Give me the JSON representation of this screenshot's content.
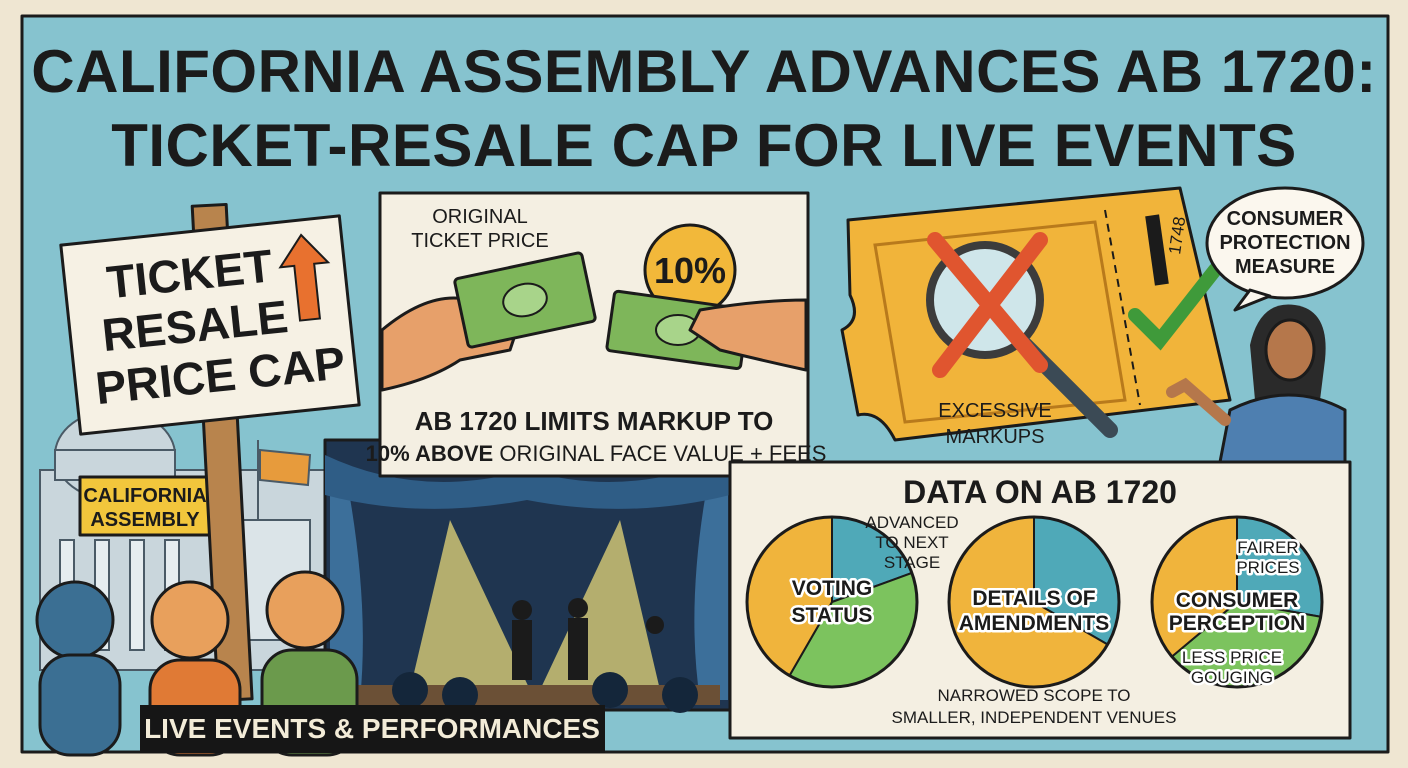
{
  "header": {
    "title_line1": "CALIFORNIA ASSEMBLY ADVANCES AB 1720:",
    "title_line2": "TICKET-RESALE CAP FOR LIVE EVENTS"
  },
  "sign": {
    "lines": [
      "TICKET",
      "RESALE",
      "PRICE CAP"
    ]
  },
  "building_label": {
    "lines": [
      "CALIFORNIA",
      "ASSEMBLY"
    ]
  },
  "banner": "LIVE EVENTS & PERFORMANCES",
  "price_panel": {
    "original_label": [
      "ORIGINAL",
      "TICKET PRICE"
    ],
    "badge": "10%",
    "caption_line1": "AB 1720 LIMITS MARKUP TO",
    "caption_line2_bold": "10% ABOVE",
    "caption_line2_rest": "ORIGINAL FACE VALUE + FEES"
  },
  "ticket_panel": {
    "barcode_text": "1748",
    "markup_label": [
      "EXCESSIVE",
      "MARKUPS"
    ],
    "speech": [
      "CONSUMER",
      "PROTECTION",
      "MEASURE"
    ]
  },
  "data_panel": {
    "title": "DATA ON AB 1720",
    "donuts": [
      {
        "label": [
          "VOTING",
          "STATUS"
        ],
        "callout": [
          "ADVANCED",
          "TO NEXT",
          "STAGE"
        ]
      },
      {
        "label": [
          "DETAILS OF",
          "AMENDMENTS"
        ],
        "callout": [
          "NARROWED SCOPE TO",
          "SMALLER, INDEPENDENT VENUES"
        ]
      },
      {
        "label": [
          "CONSUMER",
          "PERCEPTION"
        ],
        "callout": [
          "FAIRER",
          "PRICES"
        ],
        "callout2": [
          "LESS PRICE",
          "GOUGING"
        ]
      }
    ]
  }
}
